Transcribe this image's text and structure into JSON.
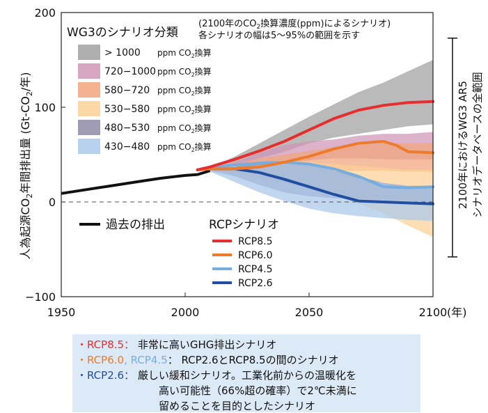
{
  "chart_data": {
    "type": "line",
    "ylabel_parts": [
      "人為起源CO",
      "2",
      "年間排出量 (Gt-CO",
      "2",
      "/年)"
    ],
    "xunit": "(年)",
    "xlim": [
      1950,
      2100
    ],
    "ylim": [
      -100,
      200
    ],
    "xticks": [
      "1950",
      "2000",
      "2050",
      "2100"
    ],
    "yticks": [
      "200",
      "100",
      "0",
      "−100"
    ],
    "zero_reference_line": "dashed",
    "grid": false,
    "wg3_legend": {
      "title": "WG3のシナリオ分類",
      "unit_parts": [
        "ppm CO",
        "2",
        "換算"
      ],
      "entries": [
        {
          "label": "> 1000",
          "color": "#a0a0a0"
        },
        {
          "label": "720−1000",
          "color": "#cf95b5"
        },
        {
          "label": "580−720",
          "color": "#f2a57c"
        },
        {
          "label": "530−580",
          "color": "#fcd197"
        },
        {
          "label": "480−530",
          "color": "#8e8aa6"
        },
        {
          "label": "430−480",
          "color": "#a9c8ea"
        }
      ]
    },
    "note_line1_parts": [
      "(2100年のCO",
      "2",
      "換算濃度(ppm)によるシナリオ)"
    ],
    "note_line2": "各シナリオの幅は5〜95%の範囲を示す",
    "range_label_line1": "2100年におけるWG3 AR5",
    "range_label_line2": "シナリオデータベースの全範囲",
    "range_bracket": [
      -58,
      173
    ],
    "historical_label": "過去の排出",
    "rcp_legend_title": "RCPシナリオ",
    "historical": {
      "x": [
        1950,
        1960,
        1970,
        1980,
        1990,
        2000,
        2005,
        2010
      ],
      "y": [
        9,
        13,
        17,
        21,
        25,
        28,
        29,
        33
      ]
    },
    "series": [
      {
        "name": "RCP8.5",
        "color": "#e62e2e",
        "x": [
          2005,
          2010,
          2020,
          2030,
          2040,
          2050,
          2060,
          2070,
          2080,
          2090,
          2100
        ],
        "y": [
          34,
          37,
          45,
          54,
          64,
          76,
          88,
          97,
          102,
          105,
          106
        ]
      },
      {
        "name": "RCP6.0",
        "color": "#ee7a2c",
        "x": [
          2005,
          2010,
          2020,
          2030,
          2040,
          2050,
          2060,
          2070,
          2080,
          2085,
          2090,
          2100
        ],
        "y": [
          34,
          35,
          35,
          37,
          42,
          48,
          56,
          62,
          64,
          60,
          53,
          52
        ]
      },
      {
        "name": "RCP4.5",
        "color": "#74aee0",
        "x": [
          2005,
          2010,
          2020,
          2030,
          2040,
          2050,
          2060,
          2070,
          2080,
          2090,
          2100
        ],
        "y": [
          34,
          36,
          39,
          41,
          42,
          40,
          35,
          27,
          16,
          15,
          16
        ]
      },
      {
        "name": "RCP2.6",
        "color": "#1f4ea3",
        "x": [
          2005,
          2010,
          2020,
          2030,
          2040,
          2050,
          2060,
          2070,
          2080,
          2090,
          2100
        ],
        "y": [
          34,
          35,
          35,
          31,
          24,
          16,
          8,
          1,
          0,
          -1,
          -2
        ]
      }
    ],
    "bands": [
      {
        "range": "> 1000",
        "color": "#a0a0a0",
        "x": [
          2010,
          2020,
          2030,
          2040,
          2050,
          2060,
          2070,
          2080,
          2090,
          2100
        ],
        "lower": [
          34,
          38,
          46,
          53,
          62,
          68,
          72,
          76,
          80,
          82
        ],
        "upper": [
          36,
          48,
          62,
          76,
          90,
          103,
          116,
          126,
          138,
          150
        ]
      },
      {
        "range": "720−1000",
        "color": "#cf95b5",
        "x": [
          2010,
          2020,
          2030,
          2040,
          2050,
          2060,
          2070,
          2080,
          2090,
          2100
        ],
        "lower": [
          33,
          33,
          37,
          40,
          44,
          46,
          46,
          45,
          45,
          45
        ],
        "upper": [
          35,
          42,
          52,
          60,
          64,
          66,
          70,
          72,
          72,
          74
        ]
      },
      {
        "range": "580−720",
        "color": "#f2a57c",
        "x": [
          2010,
          2020,
          2030,
          2040,
          2050,
          2060,
          2070,
          2080,
          2090,
          2100
        ],
        "lower": [
          33,
          33,
          34,
          34,
          34,
          33,
          33,
          33,
          32,
          32
        ],
        "upper": [
          35,
          40,
          46,
          50,
          54,
          58,
          60,
          62,
          62,
          62
        ]
      },
      {
        "range": "530−580",
        "color": "#fcd197",
        "x": [
          2010,
          2020,
          2030,
          2040,
          2050,
          2060,
          2070,
          2080,
          2090,
          2100
        ],
        "lower": [
          33,
          31,
          25,
          20,
          14,
          6,
          -2,
          -12,
          -25,
          -37
        ],
        "upper": [
          34,
          38,
          42,
          44,
          42,
          40,
          38,
          36,
          34,
          34
        ]
      },
      {
        "range": "480−530",
        "color": "#8e8aa6",
        "x": [
          2010,
          2020,
          2030,
          2040,
          2050,
          2060,
          2070,
          2080,
          2090,
          2100
        ],
        "lower": [
          33,
          27,
          18,
          10,
          6,
          4,
          3,
          2,
          1,
          0
        ],
        "upper": [
          34,
          37,
          42,
          43,
          40,
          33,
          27,
          20,
          17,
          17
        ]
      },
      {
        "range": "430−480",
        "color": "#a9c8ea",
        "x": [
          2010,
          2020,
          2030,
          2040,
          2050,
          2060,
          2070,
          2080,
          2090,
          2100
        ],
        "lower": [
          32,
          21,
          10,
          1,
          -7,
          -12,
          -15,
          -17,
          -19,
          -20
        ],
        "upper": [
          34,
          36,
          39,
          41,
          40,
          33,
          25,
          20,
          17,
          16
        ]
      }
    ]
  },
  "notes": {
    "line1": {
      "tag": "・RCP8.5：",
      "tag_color": "#e62e2e",
      "text": "非常に高いGHG排出シナリオ"
    },
    "line2": {
      "tag_a": "・RCP6.0",
      "tag_a_color": "#ee7a2c",
      "sep": ",",
      "tag_b": "RCP4.5",
      "tag_b_color": "#74aee0",
      "tail": "：",
      "text": "RCP2.6とRCP8.5の間のシナリオ"
    },
    "line3": {
      "tag": "・RCP2.6：",
      "tag_color": "#1f4ea3",
      "text": "厳しい緩和シナリオ。工業化前からの温暖化を"
    },
    "line4": "高い可能性（66%超の確率）で2℃未満に",
    "line5": "留めることを目的としたシナリオ"
  }
}
